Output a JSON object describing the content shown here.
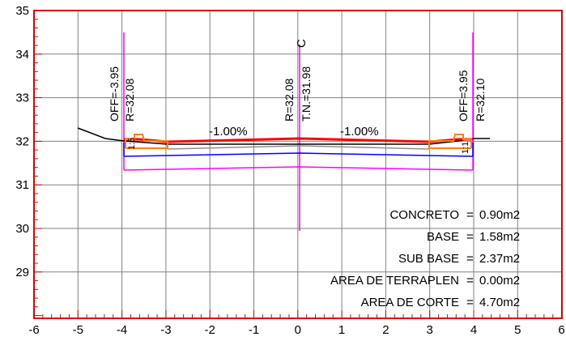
{
  "axes": {
    "x_ticks": [
      "-6",
      "-5",
      "-4",
      "-3",
      "-2",
      "-1",
      "0",
      "1",
      "2",
      "3",
      "4",
      "5",
      "6"
    ],
    "y_ticks": [
      "35",
      "34",
      "33",
      "32",
      "31",
      "30",
      "29"
    ]
  },
  "annotations": {
    "left_offset": "OFF=-3.95",
    "left_r": "R=32.08",
    "left_small": "1:5",
    "center_r": "R=32.08",
    "center_tn": "T.N.=31.98",
    "centerline_mark": "C",
    "right_offset": "OFF=3.95",
    "right_r": "R=32.10",
    "right_small": "1:1",
    "slope_left": "-1.00%",
    "slope_right": "-1.00%"
  },
  "areas": [
    {
      "label": "CONCRETO",
      "eq": "=",
      "value": "0.90m2"
    },
    {
      "label": "BASE",
      "eq": "=",
      "value": "1.58m2"
    },
    {
      "label": "SUB BASE",
      "eq": "=",
      "value": "2.37m2"
    },
    {
      "label": "AREA DE TERRAPLEN",
      "eq": "=",
      "value": "0.00m2"
    },
    {
      "label": "AREA DE CORTE",
      "eq": "=",
      "value": "4.70m2"
    }
  ],
  "colors": {
    "frame": "#e00000",
    "grid": "#808080",
    "pavement": "#ff0000",
    "base": "#0000ff",
    "subbase": "#ff00ff",
    "curb": "#ff8000",
    "ground": "#000000"
  }
}
